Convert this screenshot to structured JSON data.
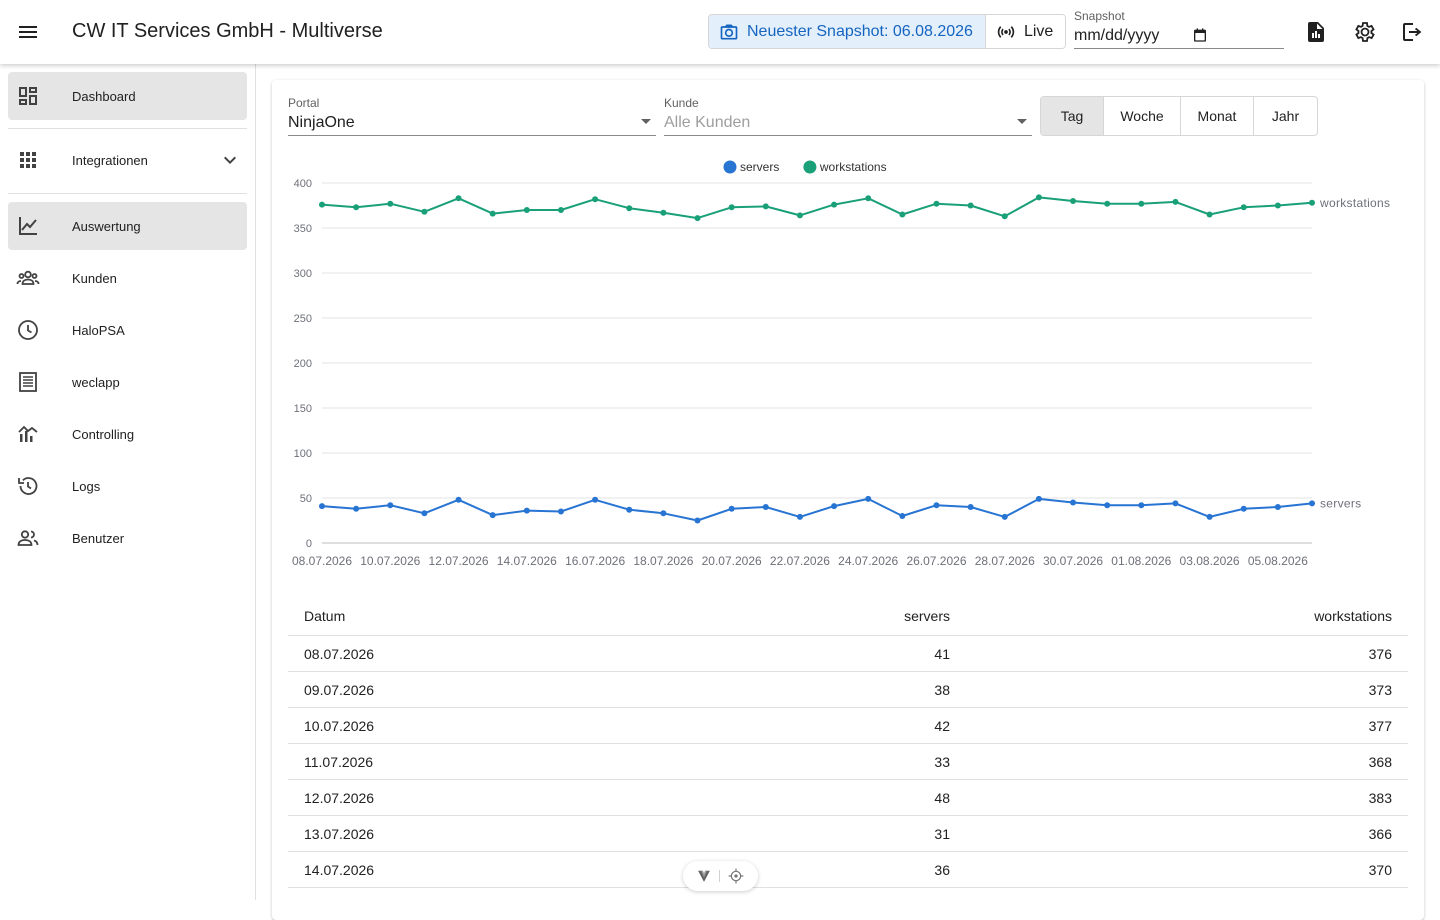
{
  "app": {
    "title": "CW IT Services GmbH - Multiverse"
  },
  "header": {
    "snapshot_latest_label": "Neuester Snapshot: 06.08.2026",
    "live_label": "Live",
    "snapshot_field_label": "Snapshot",
    "snapshot_field_placeholder": "mm/dd/yyyy",
    "icons": [
      "report-icon",
      "settings-icon",
      "logout-icon"
    ]
  },
  "sidebar": {
    "items": [
      {
        "label": "Dashboard",
        "icon": "dashboard-icon",
        "active": true
      },
      {
        "label": "Integrationen",
        "icon": "apps-grid-icon",
        "active": false,
        "expandable": true
      },
      {
        "label": "Auswertung",
        "icon": "line-chart-icon",
        "active": true
      },
      {
        "label": "Kunden",
        "icon": "customers-icon",
        "active": false
      },
      {
        "label": "HaloPSA",
        "icon": "clock-icon",
        "active": false
      },
      {
        "label": "weclapp",
        "icon": "list-document-icon",
        "active": false
      },
      {
        "label": "Controlling",
        "icon": "controlling-chart-icon",
        "active": false
      },
      {
        "label": "Logs",
        "icon": "history-icon",
        "active": false
      },
      {
        "label": "Benutzer",
        "icon": "users-icon",
        "active": false
      }
    ]
  },
  "filters": {
    "portal": {
      "label": "Portal",
      "value": "NinjaOne"
    },
    "kunde": {
      "label": "Kunde",
      "placeholder": "Alle Kunden"
    },
    "periods": [
      {
        "label": "Tag",
        "active": true
      },
      {
        "label": "Woche",
        "active": false
      },
      {
        "label": "Monat",
        "active": false
      },
      {
        "label": "Jahr",
        "active": false
      }
    ]
  },
  "chart_data": {
    "type": "line",
    "title": "",
    "xlabel": "",
    "ylabel": "",
    "ylim": [
      0,
      400
    ],
    "yticks": [
      0,
      50,
      100,
      150,
      200,
      250,
      300,
      350,
      400
    ],
    "grid": true,
    "legend_position": "top-center",
    "x": [
      "08.07.2026",
      "09.07.2026",
      "10.07.2026",
      "11.07.2026",
      "12.07.2026",
      "13.07.2026",
      "14.07.2026",
      "15.07.2026",
      "16.07.2026",
      "17.07.2026",
      "18.07.2026",
      "19.07.2026",
      "20.07.2026",
      "21.07.2026",
      "22.07.2026",
      "23.07.2026",
      "24.07.2026",
      "25.07.2026",
      "26.07.2026",
      "27.07.2026",
      "28.07.2026",
      "29.07.2026",
      "30.07.2026",
      "31.07.2026",
      "01.08.2026",
      "02.08.2026",
      "03.08.2026",
      "04.08.2026",
      "05.08.2026",
      "06.08.2026"
    ],
    "x_tick_labels": [
      "08.07.2026",
      "10.07.2026",
      "12.07.2026",
      "14.07.2026",
      "16.07.2026",
      "18.07.2026",
      "20.07.2026",
      "22.07.2026",
      "24.07.2026",
      "26.07.2026",
      "28.07.2026",
      "30.07.2026",
      "01.08.2026",
      "03.08.2026",
      "05.08.2026"
    ],
    "series": [
      {
        "name": "servers",
        "color": "#2874d3",
        "values": [
          41,
          38,
          42,
          33,
          48,
          31,
          36,
          35,
          48,
          37,
          33,
          25,
          38,
          40,
          29,
          41,
          49,
          30,
          42,
          40,
          29,
          49,
          45,
          42,
          42,
          44,
          29,
          38,
          40,
          44
        ]
      },
      {
        "name": "workstations",
        "color": "#1aa079",
        "values": [
          376,
          373,
          377,
          368,
          383,
          366,
          370,
          370,
          382,
          372,
          367,
          361,
          373,
          374,
          364,
          376,
          383,
          365,
          377,
          375,
          363,
          384,
          380,
          377,
          377,
          379,
          365,
          373,
          375,
          378
        ]
      }
    ]
  },
  "table": {
    "columns": [
      "Datum",
      "servers",
      "workstations"
    ],
    "rows": [
      [
        "08.07.2026",
        "41",
        "376"
      ],
      [
        "09.07.2026",
        "38",
        "373"
      ],
      [
        "10.07.2026",
        "42",
        "377"
      ],
      [
        "11.07.2026",
        "33",
        "368"
      ],
      [
        "12.07.2026",
        "48",
        "383"
      ],
      [
        "13.07.2026",
        "31",
        "366"
      ],
      [
        "14.07.2026",
        "36",
        "370"
      ]
    ]
  },
  "floating_toolbar": {
    "icons": [
      "vuetify-logo-icon",
      "target-icon"
    ]
  }
}
